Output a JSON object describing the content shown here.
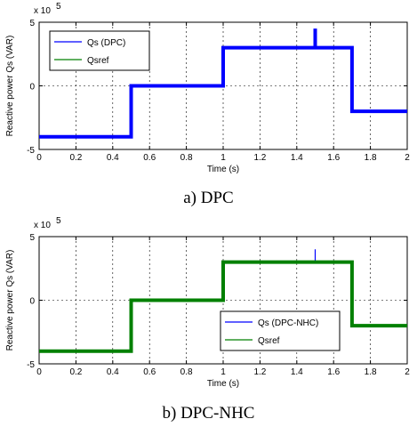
{
  "figures": [
    {
      "caption": "a) DPC",
      "chart_data": {
        "type": "line",
        "xlabel": "Time (s)",
        "ylabel": "Reactive power Qs (VAR)",
        "y_multiplier": "x 10",
        "y_exponent": "5",
        "xlim": [
          0,
          2
        ],
        "ylim": [
          -5,
          5
        ],
        "xticks": [
          "0",
          "0.2",
          "0.4",
          "0.6",
          "0.8",
          "1",
          "1.2",
          "1.4",
          "1.6",
          "1.8",
          "2"
        ],
        "yticks": [
          "-5",
          "0",
          "5"
        ],
        "grid": true,
        "legend_position": "top-left",
        "series": [
          {
            "name": "Qs (DPC)",
            "color": "#0000ff",
            "x": [
              0,
              0.5,
              0.5,
              1.0,
              1.0,
              1.5,
              1.5,
              1.5,
              1.7,
              1.7,
              2.0
            ],
            "y": [
              -4.0,
              -4.0,
              0.0,
              0.0,
              3.0,
              3.0,
              4.5,
              3.0,
              3.0,
              -2.0,
              -2.0
            ]
          },
          {
            "name": "Qsref",
            "color": "#008000",
            "x": [
              0,
              0.5,
              0.5,
              1.0,
              1.0,
              1.7,
              1.7,
              2.0
            ],
            "y": [
              -4.0,
              -4.0,
              0.0,
              0.0,
              3.0,
              3.0,
              -2.0,
              -2.0
            ]
          }
        ]
      }
    },
    {
      "caption": "b) DPC-NHC",
      "chart_data": {
        "type": "line",
        "xlabel": "Time (s)",
        "ylabel": "Reactive power Qs (VAR)",
        "y_multiplier": "x 10",
        "y_exponent": "5",
        "xlim": [
          0,
          2
        ],
        "ylim": [
          -5,
          5
        ],
        "xticks": [
          "0",
          "0.2",
          "0.4",
          "0.6",
          "0.8",
          "1",
          "1.2",
          "1.4",
          "1.6",
          "1.8",
          "2"
        ],
        "yticks": [
          "-5",
          "0",
          "5"
        ],
        "grid": true,
        "legend_position": "bottom-right",
        "series": [
          {
            "name": "Qs (DPC-NHC)",
            "color": "#0000ff",
            "x": [
              0,
              0.5,
              0.5,
              1.0,
              1.0,
              1.5,
              1.5,
              1.5,
              1.7,
              1.7,
              2.0
            ],
            "y": [
              -4.0,
              -4.0,
              0.0,
              0.0,
              3.0,
              3.0,
              4.0,
              3.0,
              3.0,
              -2.0,
              -2.0
            ]
          },
          {
            "name": "Qsref",
            "color": "#008000",
            "x": [
              0,
              0.5,
              0.5,
              1.0,
              1.0,
              1.7,
              1.7,
              2.0
            ],
            "y": [
              -4.0,
              -4.0,
              0.0,
              0.0,
              3.0,
              3.0,
              -2.0,
              -2.0
            ]
          }
        ]
      }
    }
  ]
}
